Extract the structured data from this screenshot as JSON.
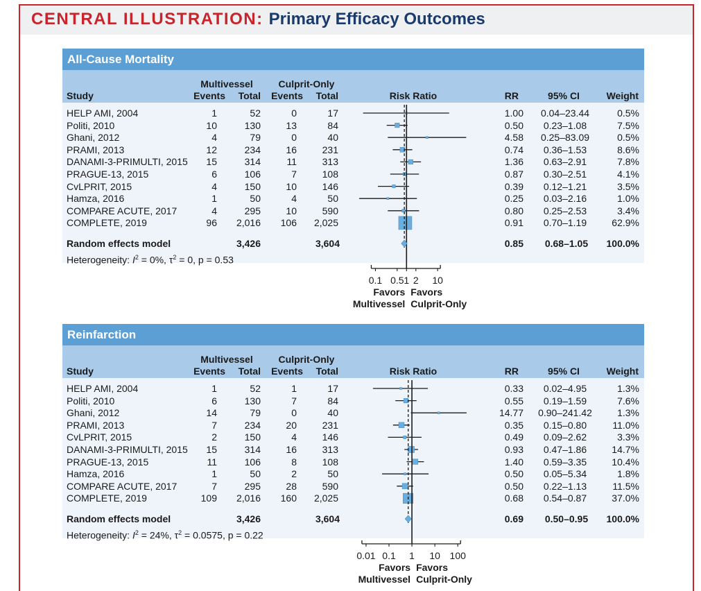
{
  "title": {
    "prefix": "CENTRAL ILLUSTRATION:",
    "main": "Primary Efficacy Outcomes"
  },
  "columns": {
    "study": "Study",
    "multivessel": "Multivessel",
    "culprit": "Culprit-Only",
    "events": "Events",
    "total": "Total",
    "risk_ratio": "Risk Ratio",
    "rr": "RR",
    "ci": "95% CI",
    "weight": "Weight"
  },
  "favors_left": [
    "Favors",
    "Multivessel"
  ],
  "favors_right": [
    "Favors",
    "Culprit-Only"
  ],
  "colors": {
    "accent_red": "#c8242b",
    "title_navy": "#1a3a6c",
    "panel_blue": "#5b9fd4",
    "header_blue": "#a9cbe9",
    "box_blue": "#6aaee0"
  },
  "chart_data": [
    {
      "type": "forest",
      "title": "All-Cause Mortality",
      "xscale": "log",
      "xlim": [
        0.03,
        100
      ],
      "x_ticks": [
        0.1,
        0.5,
        1,
        2,
        10
      ],
      "x_tick_labels": [
        "0.1",
        "0.5",
        "1",
        "2",
        "10"
      ],
      "reference_line": 1,
      "pooled_line": 0.85,
      "rows": [
        {
          "study": "HELP AMI, 2004",
          "mv_events": "1",
          "mv_total": "52",
          "co_events": "0",
          "co_total": "17",
          "rr": 1.0,
          "lo": 0.04,
          "hi": 23.44,
          "rr_text": "1.00",
          "ci_text": "0.04–23.44",
          "weight_pct": 0.5,
          "weight_text": "0.5%"
        },
        {
          "study": "Politi, 2010",
          "mv_events": "10",
          "mv_total": "130",
          "co_events": "13",
          "co_total": "84",
          "rr": 0.5,
          "lo": 0.23,
          "hi": 1.08,
          "rr_text": "0.50",
          "ci_text": "0.23–1.08",
          "weight_pct": 7.5,
          "weight_text": "7.5%"
        },
        {
          "study": "Ghani, 2012",
          "mv_events": "4",
          "mv_total": "79",
          "co_events": "0",
          "co_total": "40",
          "rr": 4.58,
          "lo": 0.25,
          "hi": 83.09,
          "rr_text": "4.58",
          "ci_text": "0.25–83.09",
          "weight_pct": 0.5,
          "weight_text": "0.5%"
        },
        {
          "study": "PRAMI, 2013",
          "mv_events": "12",
          "mv_total": "234",
          "co_events": "16",
          "co_total": "231",
          "rr": 0.74,
          "lo": 0.36,
          "hi": 1.53,
          "rr_text": "0.74",
          "ci_text": "0.36–1.53",
          "weight_pct": 8.6,
          "weight_text": "8.6%"
        },
        {
          "study": "DANAMI-3-PRIMULTI, 2015",
          "mv_events": "15",
          "mv_total": "314",
          "co_events": "11",
          "co_total": "313",
          "rr": 1.36,
          "lo": 0.63,
          "hi": 2.91,
          "rr_text": "1.36",
          "ci_text": "0.63–2.91",
          "weight_pct": 7.8,
          "weight_text": "7.8%"
        },
        {
          "study": "PRAGUE-13, 2015",
          "mv_events": "6",
          "mv_total": "106",
          "co_events": "7",
          "co_total": "108",
          "rr": 0.87,
          "lo": 0.3,
          "hi": 2.51,
          "rr_text": "0.87",
          "ci_text": "0.30–2.51",
          "weight_pct": 4.1,
          "weight_text": "4.1%"
        },
        {
          "study": "CvLPRIT, 2015",
          "mv_events": "4",
          "mv_total": "150",
          "co_events": "10",
          "co_total": "146",
          "rr": 0.39,
          "lo": 0.12,
          "hi": 1.21,
          "rr_text": "0.39",
          "ci_text": "0.12–1.21",
          "weight_pct": 3.5,
          "weight_text": "3.5%"
        },
        {
          "study": "Hamza, 2016",
          "mv_events": "1",
          "mv_total": "50",
          "co_events": "4",
          "co_total": "50",
          "rr": 0.25,
          "lo": 0.03,
          "hi": 2.16,
          "rr_text": "0.25",
          "ci_text": "0.03–2.16",
          "weight_pct": 1.0,
          "weight_text": "1.0%"
        },
        {
          "study": "COMPARE ACUTE, 2017",
          "mv_events": "4",
          "mv_total": "295",
          "co_events": "10",
          "co_total": "590",
          "rr": 0.8,
          "lo": 0.25,
          "hi": 2.53,
          "rr_text": "0.80",
          "ci_text": "0.25–2.53",
          "weight_pct": 3.4,
          "weight_text": "3.4%"
        },
        {
          "study": "COMPLETE, 2019",
          "mv_events": "96",
          "mv_total": "2,016",
          "co_events": "106",
          "co_total": "2,025",
          "rr": 0.91,
          "lo": 0.7,
          "hi": 1.19,
          "rr_text": "0.91",
          "ci_text": "0.70–1.19",
          "weight_pct": 62.9,
          "weight_text": "62.9%"
        }
      ],
      "pooled": {
        "label": "Random effects model",
        "mv_total": "3,426",
        "co_total": "3,604",
        "rr": 0.85,
        "lo": 0.68,
        "hi": 1.05,
        "rr_text": "0.85",
        "ci_text": "0.68–1.05",
        "weight_text": "100.0%"
      },
      "heterogeneity": {
        "prefix": "Heterogeneity: ",
        "i_symbol": "I",
        "sup": "2",
        "rest": " = 0%, τ",
        "sup2": "2",
        "rest2": " = 0, p = 0.53"
      }
    },
    {
      "type": "forest",
      "title": "Reinfarction",
      "xscale": "log",
      "xlim": [
        0.005,
        300
      ],
      "x_ticks": [
        0.01,
        0.1,
        1,
        10,
        100
      ],
      "x_tick_labels": [
        "0.01",
        "0.1",
        "1",
        "10",
        "100"
      ],
      "reference_line": 1,
      "pooled_line": 0.69,
      "rows": [
        {
          "study": "HELP AMI, 2004",
          "mv_events": "1",
          "mv_total": "52",
          "co_events": "1",
          "co_total": "17",
          "rr": 0.33,
          "lo": 0.02,
          "hi": 4.95,
          "rr_text": "0.33",
          "ci_text": "0.02–4.95",
          "weight_pct": 1.3,
          "weight_text": "1.3%"
        },
        {
          "study": "Politi, 2010",
          "mv_events": "6",
          "mv_total": "130",
          "co_events": "7",
          "co_total": "84",
          "rr": 0.55,
          "lo": 0.19,
          "hi": 1.59,
          "rr_text": "0.55",
          "ci_text": "0.19–1.59",
          "weight_pct": 7.6,
          "weight_text": "7.6%"
        },
        {
          "study": "Ghani, 2012",
          "mv_events": "14",
          "mv_total": "79",
          "co_events": "0",
          "co_total": "40",
          "rr": 14.77,
          "lo": 0.9,
          "hi": 241.42,
          "rr_text": "14.77",
          "ci_text": "0.90–241.42",
          "weight_pct": 1.3,
          "weight_text": "1.3%"
        },
        {
          "study": "PRAMI, 2013",
          "mv_events": "7",
          "mv_total": "234",
          "co_events": "20",
          "co_total": "231",
          "rr": 0.35,
          "lo": 0.15,
          "hi": 0.8,
          "rr_text": "0.35",
          "ci_text": "0.15–0.80",
          "weight_pct": 11.0,
          "weight_text": "11.0%"
        },
        {
          "study": "CvLPRIT, 2015",
          "mv_events": "2",
          "mv_total": "150",
          "co_events": "4",
          "co_total": "146",
          "rr": 0.49,
          "lo": 0.09,
          "hi": 2.62,
          "rr_text": "0.49",
          "ci_text": "0.09–2.62",
          "weight_pct": 3.3,
          "weight_text": "3.3%"
        },
        {
          "study": "DANAMI-3-PRIMULTI, 2015",
          "mv_events": "15",
          "mv_total": "314",
          "co_events": "16",
          "co_total": "313",
          "rr": 0.93,
          "lo": 0.47,
          "hi": 1.86,
          "rr_text": "0.93",
          "ci_text": "0.47–1.86",
          "weight_pct": 14.7,
          "weight_text": "14.7%"
        },
        {
          "study": "PRAGUE-13, 2015",
          "mv_events": "11",
          "mv_total": "106",
          "co_events": "8",
          "co_total": "108",
          "rr": 1.4,
          "lo": 0.59,
          "hi": 3.35,
          "rr_text": "1.40",
          "ci_text": "0.59–3.35",
          "weight_pct": 10.4,
          "weight_text": "10.4%"
        },
        {
          "study": "Hamza, 2016",
          "mv_events": "1",
          "mv_total": "50",
          "co_events": "2",
          "co_total": "50",
          "rr": 0.5,
          "lo": 0.05,
          "hi": 5.34,
          "rr_text": "0.50",
          "ci_text": "0.05–5.34",
          "weight_pct": 1.8,
          "weight_text": "1.8%"
        },
        {
          "study": "COMPARE ACUTE, 2017",
          "mv_events": "7",
          "mv_total": "295",
          "co_events": "28",
          "co_total": "590",
          "rr": 0.5,
          "lo": 0.22,
          "hi": 1.13,
          "rr_text": "0.50",
          "ci_text": "0.22–1.13",
          "weight_pct": 11.5,
          "weight_text": "11.5%"
        },
        {
          "study": "COMPLETE, 2019",
          "mv_events": "109",
          "mv_total": "2,016",
          "co_events": "160",
          "co_total": "2,025",
          "rr": 0.68,
          "lo": 0.54,
          "hi": 0.87,
          "rr_text": "0.68",
          "ci_text": "0.54–0.87",
          "weight_pct": 37.0,
          "weight_text": "37.0%"
        }
      ],
      "pooled": {
        "label": "Random effects model",
        "mv_total": "3,426",
        "co_total": "3,604",
        "rr": 0.69,
        "lo": 0.5,
        "hi": 0.95,
        "rr_text": "0.69",
        "ci_text": "0.50–0.95",
        "weight_text": "100.0%"
      },
      "heterogeneity": {
        "prefix": "Heterogeneity: ",
        "i_symbol": "I",
        "sup": "2",
        "rest": " = 24%, τ",
        "sup2": "2",
        "rest2": " = 0.0575, p = 0.22"
      }
    }
  ]
}
